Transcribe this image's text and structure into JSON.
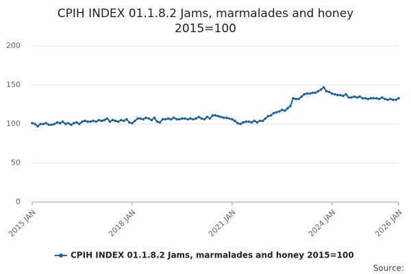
{
  "chart_data": {
    "type": "line",
    "title": "CPIH INDEX 01.1.8.2 Jams, marmalades and honey",
    "subtitle": "2015=100",
    "source": "Source:",
    "categories": [
      "2015 JAN",
      null,
      null,
      null,
      null,
      null,
      null,
      null,
      null,
      null,
      null,
      null,
      null,
      null,
      null,
      null,
      null,
      null,
      null,
      null,
      null,
      null,
      null,
      null,
      null,
      null,
      null,
      null,
      null,
      null,
      null,
      null,
      null,
      null,
      null,
      null,
      "2018 JAN",
      null,
      null,
      null,
      null,
      null,
      null,
      null,
      null,
      null,
      null,
      null,
      null,
      null,
      null,
      null,
      null,
      null,
      null,
      null,
      null,
      null,
      null,
      null,
      null,
      null,
      null,
      null,
      null,
      null,
      null,
      null,
      null,
      null,
      null,
      null,
      "2021 JAN",
      null,
      null,
      null,
      null,
      null,
      null,
      null,
      null,
      null,
      null,
      null,
      null,
      null,
      null,
      null,
      null,
      null,
      null,
      null,
      null,
      null,
      null,
      null,
      null,
      null,
      null,
      null,
      null,
      null,
      null,
      null,
      null,
      null,
      null,
      null,
      "2024 JAN",
      null,
      null,
      null,
      null,
      null,
      null,
      null,
      null,
      null,
      null,
      null,
      null,
      null,
      null,
      null,
      null,
      null,
      null,
      null,
      null,
      null,
      null,
      null,
      "2026 JAN"
    ],
    "series": [
      {
        "name": "CPIH INDEX 01.1.8.2 Jams, marmalades and honey 2015=100",
        "color": "#206095",
        "values": [
          101,
          100,
          97,
          100,
          100,
          101,
          99,
          99,
          100,
          102,
          101,
          103,
          100,
          101,
          99,
          101,
          102,
          100,
          103,
          104,
          103,
          103,
          104,
          103,
          105,
          104,
          105,
          107,
          103,
          105,
          104,
          103,
          105,
          104,
          106,
          102,
          101,
          104,
          107,
          107,
          106,
          108,
          107,
          105,
          108,
          103,
          102,
          106,
          106,
          107,
          106,
          108,
          106,
          106,
          107,
          107,
          106,
          107,
          106,
          107,
          109,
          107,
          106,
          109,
          107,
          111,
          111,
          110,
          109,
          108,
          108,
          107,
          106,
          104,
          101,
          100,
          102,
          103,
          103,
          102,
          104,
          102,
          104,
          104,
          107,
          110,
          111,
          114,
          115,
          116,
          118,
          117,
          120,
          123,
          133,
          132,
          132,
          135,
          138,
          139,
          139,
          140,
          140,
          142,
          144,
          147,
          142,
          141,
          139,
          138,
          137,
          137,
          136,
          138,
          134,
          134,
          135,
          134,
          135,
          133,
          133,
          132,
          133,
          133,
          133,
          132,
          134,
          132,
          131,
          132,
          131,
          131,
          133
        ]
      }
    ],
    "ylim": [
      0,
      200
    ],
    "yticks": [
      0,
      50,
      100,
      150,
      200
    ],
    "grid": true
  }
}
